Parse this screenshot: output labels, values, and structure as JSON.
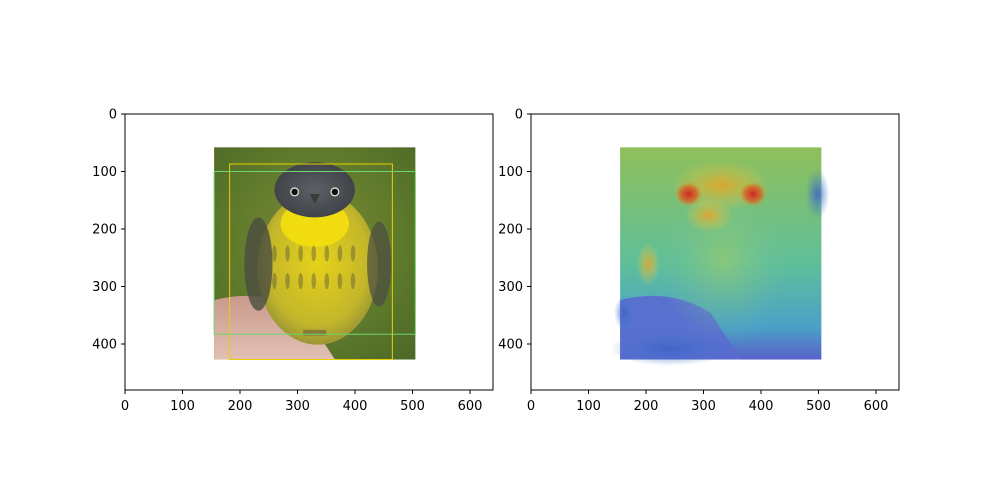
{
  "colors": {
    "frame": "#000000",
    "background": "#ffffff",
    "box_yellow": "#e8d200",
    "box_green": "#6fd66f"
  },
  "panels": [
    {
      "name": "original-with-boxes",
      "content": "bird photo with bounding boxes",
      "x_ticks": [
        "0",
        "100",
        "200",
        "300",
        "400",
        "500",
        "600"
      ],
      "y_ticks": [
        "0",
        "100",
        "200",
        "300",
        "400"
      ]
    },
    {
      "name": "heatmap-overlay",
      "content": "bird photo with attention heatmap",
      "x_ticks": [
        "0",
        "100",
        "200",
        "300",
        "400",
        "500",
        "600"
      ],
      "y_ticks": [
        "0",
        "100",
        "200",
        "300",
        "400"
      ]
    }
  ],
  "axes": {
    "xlim": [
      0,
      640
    ],
    "ylim": [
      480,
      0
    ],
    "x_values": [
      0,
      100,
      200,
      300,
      400,
      500,
      600
    ],
    "y_values": [
      0,
      100,
      200,
      300,
      400
    ]
  },
  "image_extent": {
    "x": [
      155,
      505
    ],
    "y": [
      58,
      427
    ]
  },
  "boxes": [
    {
      "color": "yellow",
      "x": [
        182,
        465
      ],
      "y": [
        87,
        427
      ]
    },
    {
      "color": "green",
      "x": [
        155,
        505
      ],
      "y": [
        100,
        383
      ]
    }
  ]
}
